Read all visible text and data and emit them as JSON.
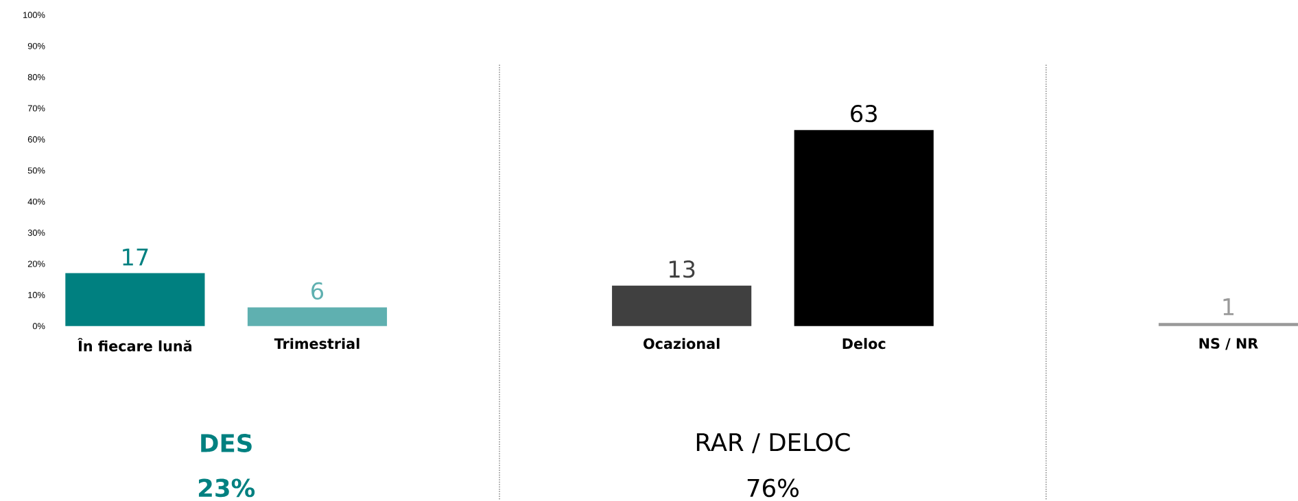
{
  "chart_data": {
    "type": "bar",
    "categories": [
      "În fiecare lună",
      "Trimestrial",
      null,
      "Ocazional",
      "Deloc",
      null,
      "NS / NR"
    ],
    "values": [
      17,
      6,
      null,
      13,
      63,
      null,
      1
    ],
    "colors": [
      "#008080",
      "#5fb0b0",
      null,
      "#404040",
      "#000000",
      null,
      "#999999"
    ],
    "data_labels": true,
    "ylim": [
      0,
      100
    ],
    "yticks": [
      {
        "value": 0,
        "label": "0%"
      },
      {
        "value": 10,
        "label": "10%"
      },
      {
        "value": 20,
        "label": "20%"
      },
      {
        "value": 30,
        "label": "30%"
      },
      {
        "value": 40,
        "label": "40%"
      },
      {
        "value": 50,
        "label": "50%"
      },
      {
        "value": 60,
        "label": "60%"
      },
      {
        "value": 70,
        "label": "70%"
      },
      {
        "value": 80,
        "label": "80%"
      },
      {
        "value": 90,
        "label": "90%"
      },
      {
        "value": 100,
        "label": "100%"
      }
    ],
    "annotations": [
      "DES",
      "23%",
      "RAR / DELOC",
      "76%"
    ]
  }
}
